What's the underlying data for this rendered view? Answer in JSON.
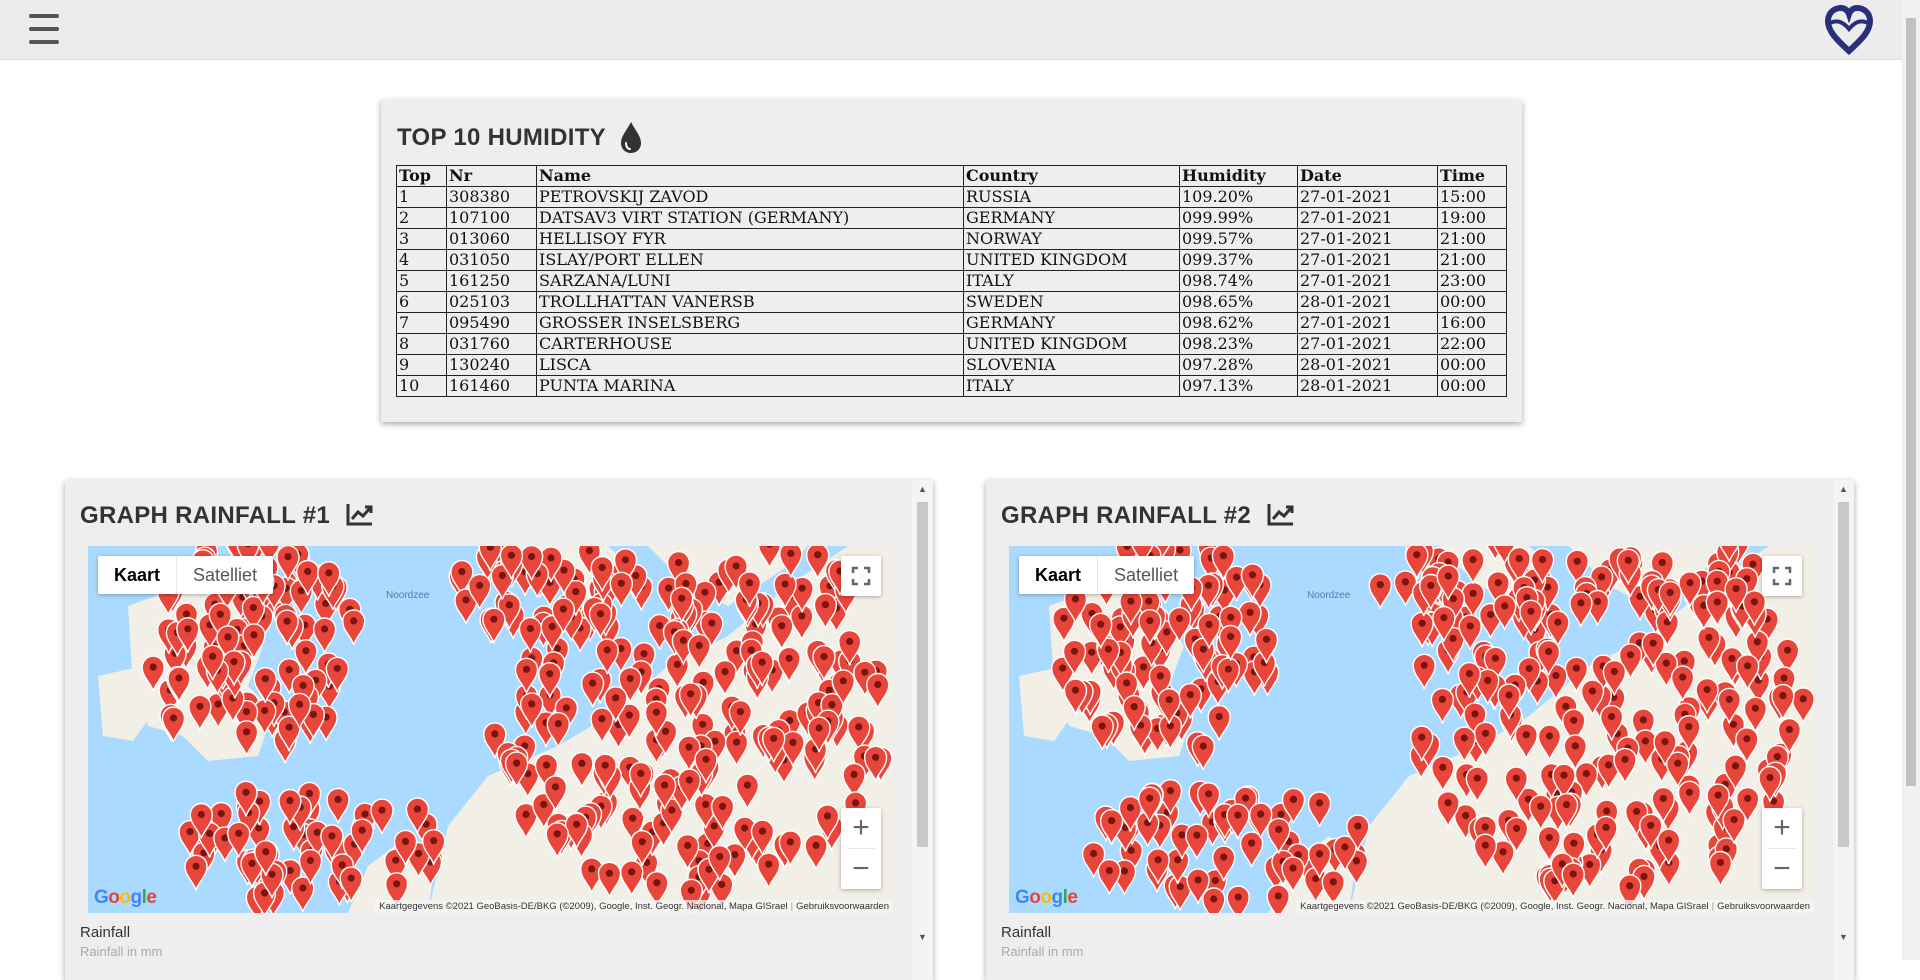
{
  "header": {
    "menu_icon": "hamburger-menu-icon",
    "logo_icon": "heart-logo-icon",
    "logo_color": "#2a2f7a"
  },
  "humidity": {
    "title": "TOP 10 HUMIDITY",
    "icon": "water-drop-icon",
    "columns": [
      "Top",
      "Nr",
      "Name",
      "Country",
      "Humidity",
      "Date",
      "Time"
    ],
    "rows": [
      [
        "1",
        "308380",
        "PETROVSKIJ ZAVOD",
        "RUSSIA",
        "109.20%",
        "27-01-2021",
        "15:00"
      ],
      [
        "2",
        "107100",
        "DATSAV3 VIRT STATION (GERMANY)",
        "GERMANY",
        "099.99%",
        "27-01-2021",
        "19:00"
      ],
      [
        "3",
        "013060",
        "HELLISOY FYR",
        "NORWAY",
        "099.57%",
        "27-01-2021",
        "21:00"
      ],
      [
        "4",
        "031050",
        "ISLAY/PORT ELLEN",
        "UNITED KINGDOM",
        "099.37%",
        "27-01-2021",
        "21:00"
      ],
      [
        "5",
        "161250",
        "SARZANA/LUNI",
        "ITALY",
        "098.74%",
        "27-01-2021",
        "23:00"
      ],
      [
        "6",
        "025103",
        "TROLLHATTAN VANERSB",
        "SWEDEN",
        "098.65%",
        "28-01-2021",
        "00:00"
      ],
      [
        "7",
        "095490",
        "GROSSER INSELSBERG",
        "GERMANY",
        "098.62%",
        "27-01-2021",
        "16:00"
      ],
      [
        "8",
        "031760",
        "CARTERHOUSE",
        "UNITED KINGDOM",
        "098.23%",
        "27-01-2021",
        "22:00"
      ],
      [
        "9",
        "130240",
        "LISCA",
        "SLOVENIA",
        "097.28%",
        "28-01-2021",
        "00:00"
      ],
      [
        "10",
        "161460",
        "PUNTA MARINA",
        "ITALY",
        "097.13%",
        "28-01-2021",
        "00:00"
      ]
    ]
  },
  "graphs": [
    {
      "title": "GRAPH RAINFALL #1",
      "icon": "trending-chart-icon",
      "map": {
        "type_map": "Kaart",
        "type_satellite": "Satelliet",
        "sea_label": "Noordzee",
        "google": "Google",
        "attribution": "Kaartgegevens ©2021 GeoBasis-DE/BKG (©2009), Google, Inst. Geogr. Nacional, Mapa GISrael",
        "terms": "Gebruiksvoorwaarden"
      },
      "label": "Rainfall",
      "sublabel": "Rainfall in mm"
    },
    {
      "title": "GRAPH RAINFALL #2",
      "icon": "trending-chart-icon",
      "map": {
        "type_map": "Kaart",
        "type_satellite": "Satelliet",
        "sea_label": "Noordzee",
        "google": "Google",
        "attribution": "Kaartgegevens ©2021 GeoBasis-DE/BKG (©2009), Google, Inst. Geogr. Nacional, Mapa GISrael",
        "terms": "Gebruiksvoorwaarden"
      },
      "label": "Rainfall",
      "sublabel": "Rainfall in mm"
    }
  ],
  "colors": {
    "marker": "#e8463b",
    "sea": "#aadaff",
    "land": "#f2efe6",
    "land_green": "#cfe7c1"
  }
}
